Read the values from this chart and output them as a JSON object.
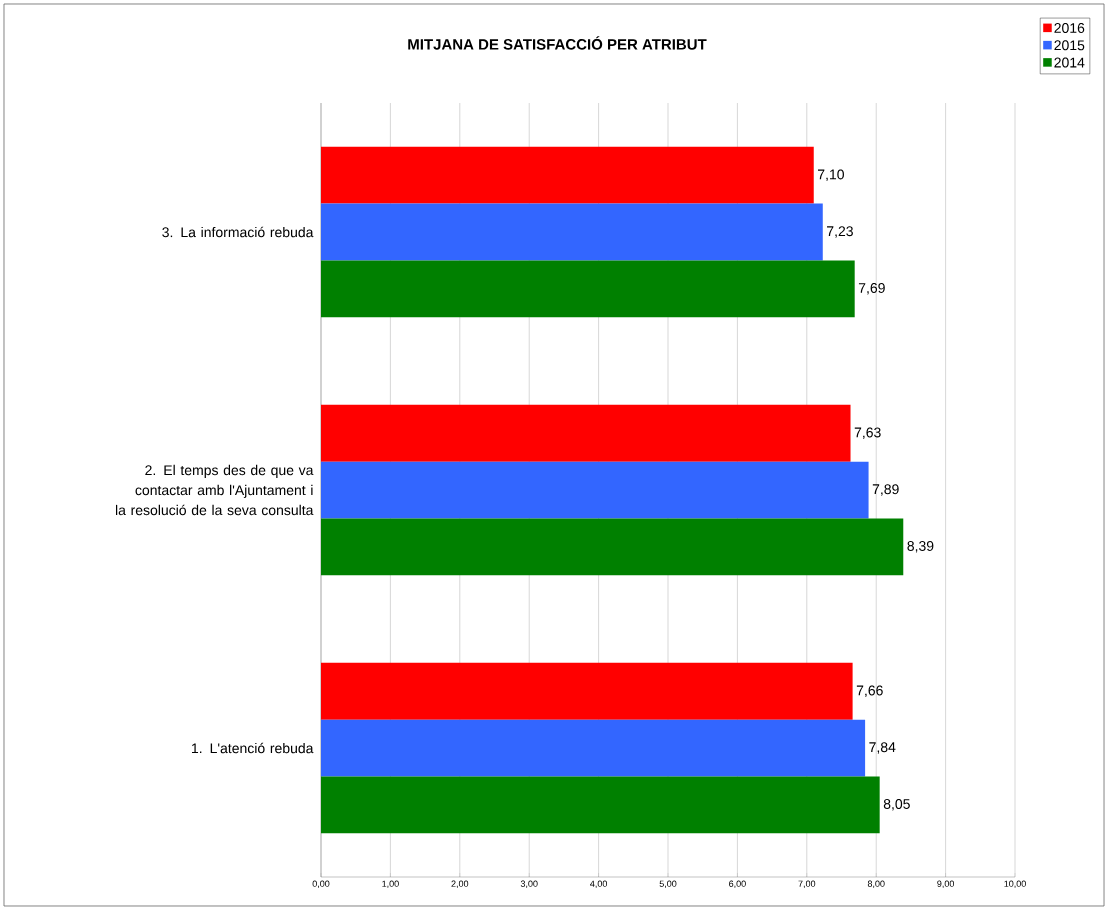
{
  "chart_data": {
    "type": "bar",
    "orientation": "horizontal",
    "title": "MITJANA DE SATISFACCIÓ PER ATRIBUT",
    "categories": [
      "3. La informació rebuda",
      "2. El temps des de que va contactar amb l'Ajuntament i la resolució de la seva consulta",
      "1. L'atenció rebuda"
    ],
    "series": [
      {
        "name": "2016",
        "color": "#ff0000",
        "values": [
          7.1,
          7.63,
          7.66
        ],
        "value_labels": [
          "7,10",
          "7,63",
          "7,66"
        ]
      },
      {
        "name": "2015",
        "color": "#3366ff",
        "values": [
          7.23,
          7.89,
          7.84
        ],
        "value_labels": [
          "7,23",
          "7,89",
          "7,84"
        ]
      },
      {
        "name": "2014",
        "color": "#008000",
        "values": [
          7.69,
          8.39,
          8.05
        ],
        "value_labels": [
          "7,69",
          "8,39",
          "8,05"
        ]
      }
    ],
    "xlim": [
      0,
      10
    ],
    "xticks": [
      {
        "value": 0,
        "label": "0,00"
      },
      {
        "value": 1,
        "label": "1,00"
      },
      {
        "value": 2,
        "label": "2,00"
      },
      {
        "value": 3,
        "label": "3,00"
      },
      {
        "value": 4,
        "label": "4,00"
      },
      {
        "value": 5,
        "label": "5,00"
      },
      {
        "value": 6,
        "label": "6,00"
      },
      {
        "value": 7,
        "label": "7,00"
      },
      {
        "value": 8,
        "label": "8,00"
      },
      {
        "value": 9,
        "label": "9,00"
      },
      {
        "value": 10,
        "label": "10,00"
      }
    ],
    "grid": "x",
    "legend": "top right"
  }
}
